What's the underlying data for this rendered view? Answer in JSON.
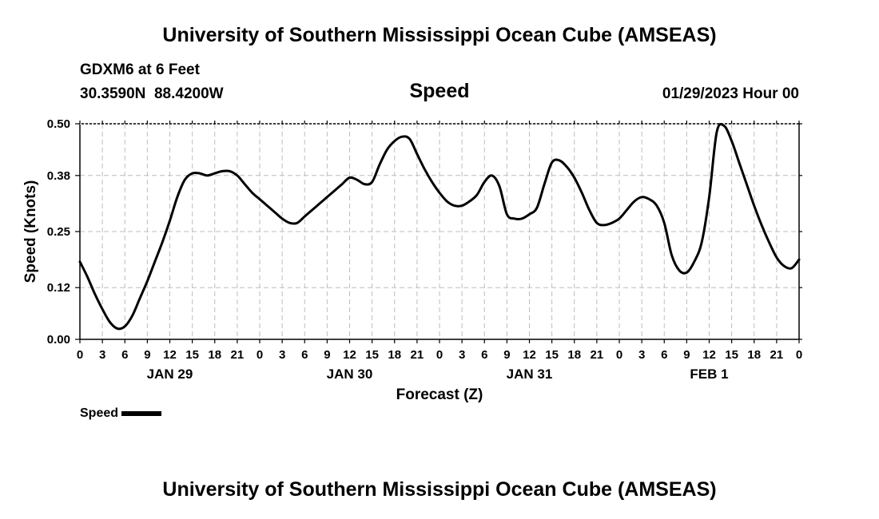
{
  "header": {
    "title": "University of Southern Mississippi Ocean Cube (AMSEAS)",
    "station": "GDXM6 at 6 Feet",
    "coordinates": "30.3590N  88.4200W",
    "parameter": "Speed",
    "datetime": "01/29/2023 Hour 00"
  },
  "footer": {
    "title": "University of Southern Mississippi Ocean Cube (AMSEAS)"
  },
  "legend": {
    "label": "Speed"
  },
  "chart_data": {
    "type": "line",
    "title": "Speed",
    "xlabel": "Forecast (Z)",
    "ylabel": "Speed (Knots)",
    "x_range_hours": [
      0,
      96
    ],
    "ylim": [
      0,
      0.5
    ],
    "yticks": [
      0.0,
      0.12,
      0.25,
      0.38,
      0.5
    ],
    "ytick_labels": [
      "0.00",
      "0.12",
      "0.25",
      "0.38",
      "0.50"
    ],
    "xtick_hours": [
      0,
      3,
      6,
      9,
      12,
      15,
      18,
      21,
      24,
      27,
      30,
      33,
      36,
      39,
      42,
      45,
      48,
      51,
      54,
      57,
      60,
      63,
      66,
      69,
      72,
      75,
      78,
      81,
      84,
      87,
      90,
      93,
      96
    ],
    "xtick_labels": [
      "0",
      "3",
      "6",
      "9",
      "12",
      "15",
      "18",
      "21",
      "0",
      "3",
      "6",
      "9",
      "12",
      "15",
      "18",
      "21",
      "0",
      "3",
      "6",
      "9",
      "12",
      "15",
      "18",
      "21",
      "0",
      "3",
      "6",
      "9",
      "12",
      "15",
      "18",
      "21",
      "0"
    ],
    "date_labels": [
      {
        "label": "JAN 29",
        "hour": 12
      },
      {
        "label": "JAN 30",
        "hour": 36
      },
      {
        "label": "JAN 31",
        "hour": 60
      },
      {
        "label": "FEB 1",
        "hour": 84
      }
    ],
    "grid": true,
    "line_color": "#000000",
    "series": [
      {
        "name": "Speed",
        "x": [
          0,
          1,
          2,
          3,
          4,
          5,
          6,
          7,
          8,
          9,
          10,
          11,
          12,
          13,
          14,
          15,
          16,
          17,
          18,
          19,
          20,
          21,
          22,
          23,
          24,
          25,
          26,
          27,
          28,
          29,
          30,
          31,
          32,
          33,
          34,
          35,
          36,
          37,
          38,
          39,
          40,
          41,
          42,
          43,
          44,
          45,
          46,
          47,
          48,
          49,
          50,
          51,
          52,
          53,
          54,
          55,
          56,
          57,
          58,
          59,
          60,
          61,
          62,
          63,
          64,
          65,
          66,
          67,
          68,
          69,
          70,
          71,
          72,
          73,
          74,
          75,
          76,
          77,
          78,
          79,
          80,
          81,
          82,
          83,
          84,
          85,
          86,
          87,
          88,
          89,
          90,
          91,
          92,
          93,
          94,
          95,
          96
        ],
        "values": [
          0.18,
          0.145,
          0.105,
          0.07,
          0.04,
          0.025,
          0.03,
          0.055,
          0.095,
          0.135,
          0.18,
          0.225,
          0.275,
          0.33,
          0.37,
          0.385,
          0.385,
          0.38,
          0.385,
          0.39,
          0.39,
          0.38,
          0.36,
          0.34,
          0.325,
          0.31,
          0.295,
          0.28,
          0.27,
          0.27,
          0.285,
          0.3,
          0.315,
          0.33,
          0.345,
          0.36,
          0.375,
          0.37,
          0.36,
          0.365,
          0.405,
          0.44,
          0.46,
          0.47,
          0.465,
          0.43,
          0.395,
          0.365,
          0.34,
          0.32,
          0.31,
          0.31,
          0.32,
          0.335,
          0.365,
          0.38,
          0.355,
          0.29,
          0.28,
          0.28,
          0.29,
          0.305,
          0.36,
          0.41,
          0.415,
          0.4,
          0.375,
          0.34,
          0.3,
          0.27,
          0.265,
          0.27,
          0.28,
          0.3,
          0.32,
          0.33,
          0.325,
          0.31,
          0.27,
          0.195,
          0.16,
          0.155,
          0.18,
          0.225,
          0.33,
          0.48,
          0.495,
          0.46,
          0.41,
          0.36,
          0.31,
          0.265,
          0.225,
          0.19,
          0.17,
          0.165,
          0.185
        ]
      }
    ]
  }
}
